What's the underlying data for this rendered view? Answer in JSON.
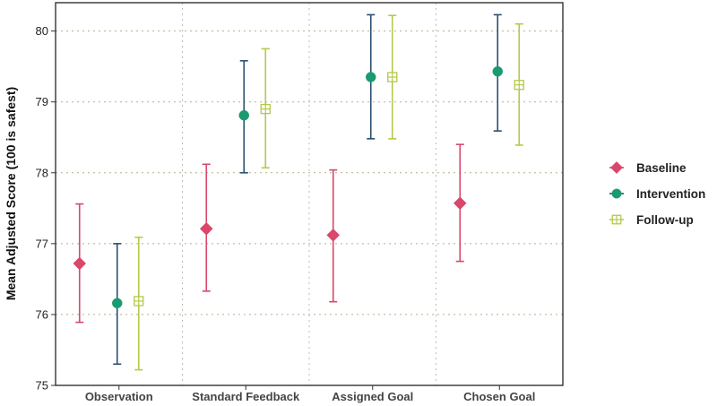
{
  "chart_data": {
    "type": "scatter",
    "ylabel": "Mean Adjusted Score (100 is safest)",
    "xlabel": "",
    "categories": [
      "Observation",
      "Standard Feedback",
      "Assigned Goal",
      "Chosen Goal"
    ],
    "ylim": [
      75,
      80.4
    ],
    "yticks": [
      75,
      76,
      77,
      78,
      79,
      80
    ],
    "grid": true,
    "legend_position": "right",
    "series": [
      {
        "name": "Baseline",
        "color": "#d9476b",
        "marker": "diamond",
        "values": [
          76.72,
          77.21,
          77.12,
          77.57
        ],
        "lower": [
          75.89,
          76.33,
          76.18,
          76.75
        ],
        "upper": [
          77.56,
          78.12,
          78.04,
          78.4
        ]
      },
      {
        "name": "Intervention",
        "color": "#1a9b6f",
        "bar_color": "#2b4f73",
        "marker": "circle",
        "values": [
          76.16,
          78.81,
          79.35,
          79.43
        ],
        "lower": [
          75.3,
          78.0,
          78.48,
          78.59
        ],
        "upper": [
          77.0,
          79.58,
          80.23,
          80.23
        ]
      },
      {
        "name": "Follow-up",
        "color": "#b5c94a",
        "marker": "square-plus",
        "values": [
          76.19,
          78.9,
          79.35,
          79.24
        ],
        "lower": [
          75.22,
          78.07,
          78.48,
          78.39
        ],
        "upper": [
          77.09,
          79.75,
          80.22,
          80.1
        ]
      }
    ]
  }
}
